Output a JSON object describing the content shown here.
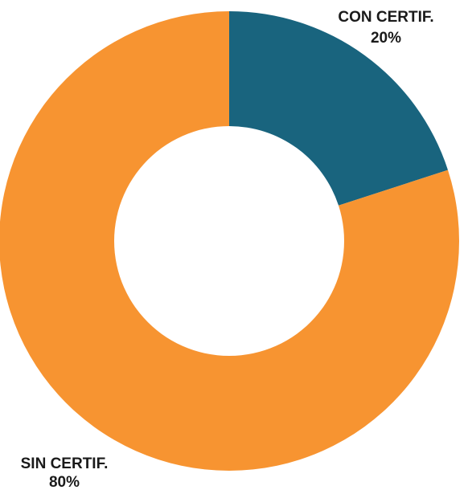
{
  "chart_data": {
    "type": "pie",
    "donut": true,
    "title": "",
    "slices": [
      {
        "label": "CON CERTIF.",
        "value": 20,
        "value_label": "20%",
        "color": "#19647e"
      },
      {
        "label": "SIN CERTIF.",
        "value": 80,
        "value_label": "80%",
        "color": "#f79431"
      }
    ],
    "start": "top, clockwise",
    "legend": "none"
  }
}
